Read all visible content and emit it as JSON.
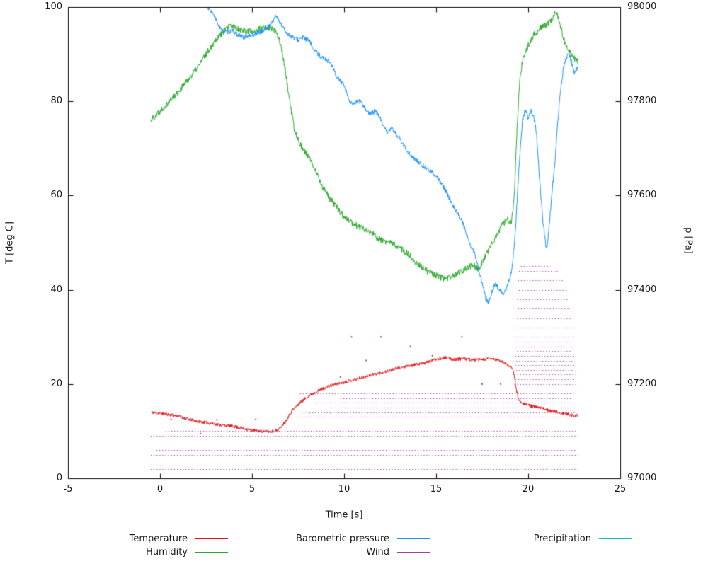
{
  "chart_data": {
    "type": "line",
    "title": "",
    "xlabel": "Time [s]",
    "ylabel_left": "T [deg C]",
    "ylabel_right": "p [Pa]",
    "xlim": [
      -5,
      25
    ],
    "ylim_left": [
      0,
      100
    ],
    "ylim_right": [
      97000,
      98000
    ],
    "xticks": [
      -5,
      0,
      5,
      10,
      15,
      20,
      25
    ],
    "yticks_left": [
      0,
      20,
      40,
      60,
      80,
      100
    ],
    "yticks_right": [
      97000,
      97200,
      97400,
      97600,
      97800,
      98000
    ],
    "axis_color": "#000000",
    "grid": false,
    "legend_position": "bottom",
    "series": [
      {
        "name": "Temperature",
        "color": "#e01212",
        "axis": "left",
        "style": "noisy-line",
        "noise": 0.35,
        "seed": 11,
        "points": [
          [
            -0.5,
            14
          ],
          [
            0,
            13.8
          ],
          [
            0.5,
            13.5
          ],
          [
            1,
            13.2
          ],
          [
            1.5,
            12.6
          ],
          [
            2,
            12.1
          ],
          [
            2.5,
            11.8
          ],
          [
            3,
            11.5
          ],
          [
            3.5,
            11.2
          ],
          [
            4,
            11
          ],
          [
            4.5,
            10.6
          ],
          [
            5,
            10.2
          ],
          [
            5.5,
            10
          ],
          [
            6,
            9.9
          ],
          [
            6.4,
            10.2
          ],
          [
            6.8,
            12
          ],
          [
            7.2,
            14.5
          ],
          [
            7.6,
            16
          ],
          [
            8,
            17.3
          ],
          [
            8.5,
            18.4
          ],
          [
            9,
            19.3
          ],
          [
            9.5,
            19.9
          ],
          [
            10,
            20.4
          ],
          [
            10.5,
            20.9
          ],
          [
            11,
            21.4
          ],
          [
            11.5,
            22
          ],
          [
            12,
            22.4
          ],
          [
            12.5,
            22.9
          ],
          [
            13,
            23.4
          ],
          [
            13.5,
            23.8
          ],
          [
            14,
            24.2
          ],
          [
            14.5,
            24.6
          ],
          [
            15,
            25.3
          ],
          [
            15.5,
            25.6
          ],
          [
            16,
            25.2
          ],
          [
            16.5,
            25.4
          ],
          [
            17,
            25.1
          ],
          [
            17.5,
            25.2
          ],
          [
            18,
            25.4
          ],
          [
            18.4,
            25
          ],
          [
            18.8,
            24.3
          ],
          [
            19,
            23.8
          ],
          [
            19.2,
            22.8
          ],
          [
            19.35,
            19
          ],
          [
            19.5,
            16.5
          ],
          [
            19.8,
            15.8
          ],
          [
            20.2,
            15.3
          ],
          [
            20.6,
            15
          ],
          [
            21,
            14.6
          ],
          [
            21.4,
            14.2
          ],
          [
            21.8,
            13.8
          ],
          [
            22.2,
            13.5
          ],
          [
            22.7,
            13.2
          ]
        ]
      },
      {
        "name": "Humidity",
        "color": "#2ca82c",
        "axis": "left",
        "style": "noisy-line",
        "noise": 0.7,
        "seed": 22,
        "points": [
          [
            -0.5,
            76
          ],
          [
            0,
            78
          ],
          [
            0.5,
            80
          ],
          [
            1,
            82
          ],
          [
            1.5,
            84.5
          ],
          [
            2,
            87
          ],
          [
            2.5,
            90
          ],
          [
            3,
            93
          ],
          [
            3.5,
            95
          ],
          [
            3.8,
            96
          ],
          [
            4.2,
            95.5
          ],
          [
            4.6,
            95
          ],
          [
            5,
            94.8
          ],
          [
            5.4,
            95.3
          ],
          [
            5.8,
            95.6
          ],
          [
            6.2,
            95.2
          ],
          [
            6.5,
            93
          ],
          [
            6.8,
            87
          ],
          [
            7,
            81
          ],
          [
            7.3,
            74
          ],
          [
            7.6,
            71
          ],
          [
            8,
            68.5
          ],
          [
            8.4,
            66
          ],
          [
            8.8,
            62
          ],
          [
            9.2,
            59.5
          ],
          [
            9.6,
            57.5
          ],
          [
            10,
            55.5
          ],
          [
            10.5,
            54
          ],
          [
            11,
            53
          ],
          [
            11.5,
            52
          ],
          [
            12,
            50.5
          ],
          [
            12.5,
            50
          ],
          [
            13,
            49
          ],
          [
            13.5,
            47.5
          ],
          [
            14,
            45.5
          ],
          [
            14.5,
            44
          ],
          [
            15,
            43
          ],
          [
            15.5,
            42.3
          ],
          [
            16,
            43
          ],
          [
            16.5,
            44.3
          ],
          [
            17,
            45.3
          ],
          [
            17.3,
            44.5
          ],
          [
            17.6,
            46.5
          ],
          [
            18,
            49.5
          ],
          [
            18.3,
            51.5
          ],
          [
            18.6,
            54
          ],
          [
            18.9,
            54.8
          ],
          [
            19.1,
            54.2
          ],
          [
            19.25,
            60
          ],
          [
            19.4,
            75
          ],
          [
            19.55,
            85
          ],
          [
            19.7,
            89
          ],
          [
            20,
            92
          ],
          [
            20.3,
            94
          ],
          [
            20.7,
            95.8
          ],
          [
            21,
            96.2
          ],
          [
            21.3,
            97.5
          ],
          [
            21.5,
            99
          ],
          [
            21.7,
            97
          ],
          [
            21.9,
            93.5
          ],
          [
            22.1,
            91.5
          ],
          [
            22.4,
            89.5
          ],
          [
            22.7,
            88.3
          ]
        ]
      },
      {
        "name": "Barometric pressure",
        "color": "#1e90ff",
        "axis": "right",
        "style": "noisy-line",
        "noise": 5,
        "seed": 33,
        "points": [
          [
            2.4,
            98010
          ],
          [
            2.6,
            97998
          ],
          [
            2.8,
            97990
          ],
          [
            3,
            97976
          ],
          [
            3.3,
            97952
          ],
          [
            3.6,
            97946
          ],
          [
            3.9,
            97950
          ],
          [
            4.2,
            97942
          ],
          [
            4.5,
            97936
          ],
          [
            4.8,
            97938
          ],
          [
            5.1,
            97942
          ],
          [
            5.4,
            97946
          ],
          [
            5.7,
            97952
          ],
          [
            6,
            97962
          ],
          [
            6.3,
            97982
          ],
          [
            6.6,
            97962
          ],
          [
            6.9,
            97944
          ],
          [
            7.2,
            97936
          ],
          [
            7.5,
            97930
          ],
          [
            7.8,
            97936
          ],
          [
            8.1,
            97928
          ],
          [
            8.4,
            97908
          ],
          [
            8.7,
            97896
          ],
          [
            9,
            97890
          ],
          [
            9.3,
            97880
          ],
          [
            9.6,
            97852
          ],
          [
            10,
            97832
          ],
          [
            10.3,
            97800
          ],
          [
            10.5,
            97792
          ],
          [
            10.8,
            97802
          ],
          [
            11.1,
            97788
          ],
          [
            11.4,
            97772
          ],
          [
            11.7,
            97780
          ],
          [
            12,
            97762
          ],
          [
            12.3,
            97734
          ],
          [
            12.6,
            97742
          ],
          [
            13,
            97722
          ],
          [
            13.3,
            97702
          ],
          [
            13.7,
            97682
          ],
          [
            14,
            97672
          ],
          [
            14.4,
            97660
          ],
          [
            14.8,
            97650
          ],
          [
            15.1,
            97636
          ],
          [
            15.4,
            97618
          ],
          [
            15.8,
            97588
          ],
          [
            16.1,
            97566
          ],
          [
            16.4,
            97548
          ],
          [
            16.8,
            97500
          ],
          [
            17.1,
            97476
          ],
          [
            17.4,
            97428
          ],
          [
            17.7,
            97382
          ],
          [
            17.85,
            97372
          ],
          [
            18,
            97392
          ],
          [
            18.2,
            97412
          ],
          [
            18.45,
            97400
          ],
          [
            18.7,
            97392
          ],
          [
            18.9,
            97412
          ],
          [
            19.1,
            97438
          ],
          [
            19.3,
            97520
          ],
          [
            19.5,
            97660
          ],
          [
            19.7,
            97762
          ],
          [
            19.85,
            97782
          ],
          [
            20,
            97764
          ],
          [
            20.15,
            97780
          ],
          [
            20.3,
            97768
          ],
          [
            20.45,
            97736
          ],
          [
            20.6,
            97644
          ],
          [
            20.8,
            97544
          ],
          [
            21,
            97484
          ],
          [
            21.15,
            97540
          ],
          [
            21.3,
            97610
          ],
          [
            21.45,
            97668
          ],
          [
            21.6,
            97752
          ],
          [
            21.75,
            97820
          ],
          [
            21.9,
            97866
          ],
          [
            22.05,
            97890
          ],
          [
            22.2,
            97902
          ],
          [
            22.35,
            97884
          ],
          [
            22.5,
            97862
          ],
          [
            22.7,
            97872
          ]
        ]
      },
      {
        "name": "Wind",
        "color": "#a83ca8",
        "axis": "left",
        "style": "dotted-segments",
        "segments": [
          [
            2,
            -0.5,
            22.7
          ],
          [
            5,
            -0.5,
            22.7
          ],
          [
            6,
            -0.2,
            22.6
          ],
          [
            9,
            -0.5,
            22.7
          ],
          [
            10,
            0.3,
            22.6
          ],
          [
            13,
            7.4,
            22.5
          ],
          [
            14,
            7.8,
            22.6
          ],
          [
            15,
            9.2,
            22.4
          ],
          [
            16,
            8.4,
            22.6
          ],
          [
            17,
            9.8,
            22.3
          ],
          [
            18,
            7.6,
            22.6
          ],
          [
            20,
            19.25,
            22.6
          ],
          [
            21,
            19.3,
            22.5
          ],
          [
            22,
            19.25,
            22.6
          ],
          [
            23,
            19.35,
            22.5
          ],
          [
            24,
            19.3,
            22.6
          ],
          [
            25,
            19.35,
            22.5
          ],
          [
            26,
            19.3,
            22.6
          ],
          [
            27,
            19.4,
            22.4
          ],
          [
            28,
            19.35,
            22.5
          ],
          [
            29,
            19.4,
            22.3
          ],
          [
            30,
            19.3,
            22.6
          ],
          [
            32,
            19.4,
            22.5
          ],
          [
            34,
            19.4,
            22.4
          ],
          [
            36,
            19.45,
            22.3
          ],
          [
            38,
            19.4,
            22.2
          ],
          [
            40,
            19.5,
            22.1
          ],
          [
            42,
            19.45,
            21.9
          ],
          [
            44,
            19.5,
            21.6
          ],
          [
            45,
            19.6,
            21.2
          ]
        ],
        "dots": [
          [
            0.6,
            12.5
          ],
          [
            1.4,
            12.6
          ],
          [
            3.1,
            12.4
          ],
          [
            5.2,
            12.5
          ],
          [
            2.2,
            9.5
          ],
          [
            10.4,
            30
          ],
          [
            12,
            30
          ],
          [
            13.6,
            28
          ],
          [
            16.4,
            30
          ],
          [
            11.2,
            25
          ],
          [
            9.8,
            21.5
          ],
          [
            14.8,
            26
          ],
          [
            17.5,
            20
          ],
          [
            18.5,
            20
          ]
        ]
      },
      {
        "name": "Precipitation",
        "color": "#00c0c0",
        "axis": "left",
        "style": "noisy-line",
        "noise": 0,
        "seed": 44,
        "points": []
      }
    ],
    "legend": {
      "rows": [
        [
          "Temperature",
          "Barometric pressure",
          "Precipitation"
        ],
        [
          "Humidity",
          "Wind"
        ]
      ]
    }
  }
}
